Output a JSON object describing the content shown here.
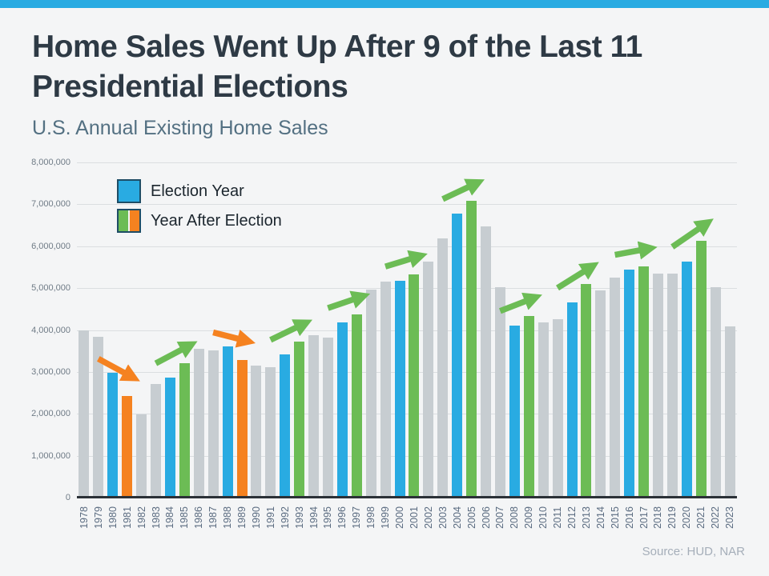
{
  "colors": {
    "accent_blue": "#29abe2",
    "bar_gray": "#c7cdd1",
    "bar_blue": "#29abe2",
    "bar_green": "#6cbc55",
    "bar_orange": "#f58220",
    "grid": "#dbdee1",
    "axis_line": "#2b3137",
    "title_text": "#2e3a45",
    "subtitle_text": "#537082",
    "ytick_text": "#6f7b86",
    "xtick_text": "#5a6b80",
    "source_text": "#a5aeb9",
    "legend_border": "#1e4d66",
    "background": "#f4f5f6"
  },
  "chart_data": {
    "type": "bar",
    "title": "Home Sales Went Up After 9 of the Last 11\nPresidential Elections",
    "subtitle": "U.S. Annual Existing Home Sales",
    "source": "Source: HUD, NAR",
    "ylim": [
      0,
      8000000
    ],
    "ytick_step": 1000000,
    "ytick_labels": [
      "0",
      "1,000,000",
      "2,000,000",
      "3,000,000",
      "4,000,000",
      "5,000,000",
      "6,000,000",
      "7,000,000",
      "8,000,000"
    ],
    "grid": true,
    "legend_position": "top-left",
    "legend": [
      {
        "label": "Election Year",
        "colors": [
          "#29abe2"
        ]
      },
      {
        "label": "Year After Election",
        "colors": [
          "#6cbc55",
          "#f58220"
        ]
      }
    ],
    "roles": {
      "default": "#c7cdd1",
      "election": "#29abe2",
      "after-up": "#6cbc55",
      "after-down": "#f58220"
    },
    "bars": [
      {
        "year": "1978",
        "value": 3990000,
        "role": "default"
      },
      {
        "year": "1979",
        "value": 3830000,
        "role": "default"
      },
      {
        "year": "1980",
        "value": 2970000,
        "role": "election"
      },
      {
        "year": "1981",
        "value": 2420000,
        "role": "after-down"
      },
      {
        "year": "1982",
        "value": 1990000,
        "role": "default"
      },
      {
        "year": "1983",
        "value": 2720000,
        "role": "default"
      },
      {
        "year": "1984",
        "value": 2860000,
        "role": "election"
      },
      {
        "year": "1985",
        "value": 3210000,
        "role": "after-up"
      },
      {
        "year": "1986",
        "value": 3550000,
        "role": "default"
      },
      {
        "year": "1987",
        "value": 3510000,
        "role": "default"
      },
      {
        "year": "1988",
        "value": 3600000,
        "role": "election"
      },
      {
        "year": "1989",
        "value": 3290000,
        "role": "after-down"
      },
      {
        "year": "1990",
        "value": 3160000,
        "role": "default"
      },
      {
        "year": "1991",
        "value": 3120000,
        "role": "default"
      },
      {
        "year": "1992",
        "value": 3420000,
        "role": "election"
      },
      {
        "year": "1993",
        "value": 3730000,
        "role": "after-up"
      },
      {
        "year": "1994",
        "value": 3870000,
        "role": "default"
      },
      {
        "year": "1995",
        "value": 3810000,
        "role": "default"
      },
      {
        "year": "1996",
        "value": 4180000,
        "role": "election"
      },
      {
        "year": "1997",
        "value": 4370000,
        "role": "after-up"
      },
      {
        "year": "1998",
        "value": 4970000,
        "role": "default"
      },
      {
        "year": "1999",
        "value": 5150000,
        "role": "default"
      },
      {
        "year": "2000",
        "value": 5170000,
        "role": "election"
      },
      {
        "year": "2001",
        "value": 5330000,
        "role": "after-up"
      },
      {
        "year": "2002",
        "value": 5630000,
        "role": "default"
      },
      {
        "year": "2003",
        "value": 6180000,
        "role": "default"
      },
      {
        "year": "2004",
        "value": 6780000,
        "role": "election"
      },
      {
        "year": "2005",
        "value": 7080000,
        "role": "after-up"
      },
      {
        "year": "2006",
        "value": 6470000,
        "role": "default"
      },
      {
        "year": "2007",
        "value": 5030000,
        "role": "default"
      },
      {
        "year": "2008",
        "value": 4110000,
        "role": "election"
      },
      {
        "year": "2009",
        "value": 4340000,
        "role": "after-up"
      },
      {
        "year": "2010",
        "value": 4190000,
        "role": "default"
      },
      {
        "year": "2011",
        "value": 4260000,
        "role": "default"
      },
      {
        "year": "2012",
        "value": 4660000,
        "role": "election"
      },
      {
        "year": "2013",
        "value": 5090000,
        "role": "after-up"
      },
      {
        "year": "2014",
        "value": 4940000,
        "role": "default"
      },
      {
        "year": "2015",
        "value": 5250000,
        "role": "default"
      },
      {
        "year": "2016",
        "value": 5450000,
        "role": "election"
      },
      {
        "year": "2017",
        "value": 5510000,
        "role": "after-up"
      },
      {
        "year": "2018",
        "value": 5340000,
        "role": "default"
      },
      {
        "year": "2019",
        "value": 5340000,
        "role": "default"
      },
      {
        "year": "2020",
        "value": 5640000,
        "role": "election"
      },
      {
        "year": "2021",
        "value": 6120000,
        "role": "after-up"
      },
      {
        "year": "2022",
        "value": 5030000,
        "role": "default"
      },
      {
        "year": "2023",
        "value": 4090000,
        "role": "default"
      }
    ],
    "arrows": [
      {
        "from": "1980",
        "to": "1981",
        "direction": "down"
      },
      {
        "from": "1984",
        "to": "1985",
        "direction": "up"
      },
      {
        "from": "1988",
        "to": "1989",
        "direction": "down"
      },
      {
        "from": "1992",
        "to": "1993",
        "direction": "up"
      },
      {
        "from": "1996",
        "to": "1997",
        "direction": "up"
      },
      {
        "from": "2000",
        "to": "2001",
        "direction": "up"
      },
      {
        "from": "2004",
        "to": "2005",
        "direction": "up"
      },
      {
        "from": "2008",
        "to": "2009",
        "direction": "up"
      },
      {
        "from": "2012",
        "to": "2013",
        "direction": "up"
      },
      {
        "from": "2016",
        "to": "2017",
        "direction": "up"
      },
      {
        "from": "2020",
        "to": "2021",
        "direction": "up"
      }
    ]
  }
}
